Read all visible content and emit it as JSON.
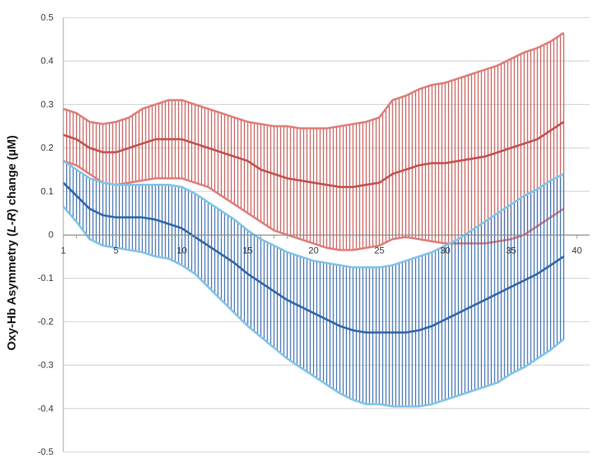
{
  "chart_data": {
    "type": "area",
    "title": "",
    "xlabel": "",
    "ylabel_parts": [
      "Oxy-Hb Asymmetry (",
      "L-R",
      ") change (µM)"
    ],
    "xlim": [
      1,
      40
    ],
    "ylim": [
      -0.5,
      0.5
    ],
    "x_ticks": [
      "1",
      "5",
      "10",
      "15",
      "20",
      "25",
      "30",
      "35",
      "40"
    ],
    "y_ticks": [
      "0.5",
      "0.4",
      "0.3",
      "0.2",
      "0.1",
      "0",
      "-0.1",
      "-0.2",
      "-0.3",
      "-0.4",
      "-0.5"
    ],
    "grid": true,
    "legend": "none",
    "x": [
      1,
      2,
      3,
      4,
      5,
      6,
      7,
      8,
      9,
      10,
      11,
      12,
      13,
      14,
      15,
      16,
      17,
      18,
      19,
      20,
      21,
      22,
      23,
      24,
      25,
      26,
      27,
      28,
      29,
      30,
      31,
      32,
      33,
      34,
      35,
      36,
      37,
      38,
      39
    ],
    "series": [
      {
        "color": "#c0504d",
        "band_color": "#e07c78",
        "mean": [
          0.23,
          0.22,
          0.2,
          0.19,
          0.19,
          0.2,
          0.21,
          0.22,
          0.22,
          0.22,
          0.21,
          0.2,
          0.19,
          0.18,
          0.17,
          0.15,
          0.14,
          0.13,
          0.125,
          0.12,
          0.115,
          0.11,
          0.11,
          0.115,
          0.12,
          0.14,
          0.15,
          0.16,
          0.165,
          0.165,
          0.17,
          0.175,
          0.18,
          0.19,
          0.2,
          0.21,
          0.22,
          0.24,
          0.26
        ],
        "upper": [
          0.29,
          0.28,
          0.26,
          0.255,
          0.26,
          0.27,
          0.29,
          0.3,
          0.31,
          0.31,
          0.3,
          0.29,
          0.28,
          0.27,
          0.26,
          0.255,
          0.25,
          0.25,
          0.245,
          0.245,
          0.245,
          0.25,
          0.255,
          0.26,
          0.27,
          0.31,
          0.32,
          0.335,
          0.345,
          0.35,
          0.36,
          0.37,
          0.38,
          0.39,
          0.405,
          0.42,
          0.43,
          0.445,
          0.465
        ],
        "lower": [
          0.17,
          0.16,
          0.14,
          0.12,
          0.115,
          0.12,
          0.125,
          0.13,
          0.13,
          0.13,
          0.12,
          0.11,
          0.09,
          0.07,
          0.05,
          0.03,
          0.01,
          0.0,
          -0.01,
          -0.02,
          -0.03,
          -0.035,
          -0.035,
          -0.03,
          -0.025,
          -0.01,
          -0.005,
          -0.01,
          -0.015,
          -0.02,
          -0.02,
          -0.02,
          -0.02,
          -0.015,
          -0.01,
          0.0,
          0.02,
          0.04,
          0.06
        ]
      },
      {
        "color": "#2e64a8",
        "band_color": "#7fc3e8",
        "mean": [
          0.12,
          0.09,
          0.06,
          0.045,
          0.04,
          0.04,
          0.04,
          0.035,
          0.025,
          0.015,
          -0.005,
          -0.025,
          -0.045,
          -0.065,
          -0.09,
          -0.11,
          -0.13,
          -0.15,
          -0.165,
          -0.18,
          -0.195,
          -0.21,
          -0.22,
          -0.225,
          -0.225,
          -0.225,
          -0.225,
          -0.22,
          -0.21,
          -0.195,
          -0.18,
          -0.165,
          -0.15,
          -0.135,
          -0.12,
          -0.105,
          -0.09,
          -0.07,
          -0.05
        ],
        "upper": [
          0.17,
          0.15,
          0.13,
          0.12,
          0.115,
          0.115,
          0.115,
          0.115,
          0.115,
          0.11,
          0.095,
          0.075,
          0.055,
          0.035,
          0.01,
          -0.01,
          -0.025,
          -0.04,
          -0.05,
          -0.06,
          -0.065,
          -0.07,
          -0.075,
          -0.075,
          -0.075,
          -0.07,
          -0.06,
          -0.05,
          -0.04,
          -0.025,
          -0.01,
          0.01,
          0.03,
          0.05,
          0.07,
          0.09,
          0.105,
          0.125,
          0.14
        ],
        "lower": [
          0.065,
          0.03,
          -0.01,
          -0.025,
          -0.03,
          -0.035,
          -0.04,
          -0.05,
          -0.055,
          -0.07,
          -0.09,
          -0.12,
          -0.15,
          -0.18,
          -0.21,
          -0.235,
          -0.26,
          -0.285,
          -0.305,
          -0.325,
          -0.345,
          -0.365,
          -0.38,
          -0.39,
          -0.39,
          -0.395,
          -0.395,
          -0.395,
          -0.39,
          -0.38,
          -0.37,
          -0.36,
          -0.35,
          -0.34,
          -0.32,
          -0.305,
          -0.285,
          -0.265,
          -0.24
        ]
      }
    ]
  }
}
